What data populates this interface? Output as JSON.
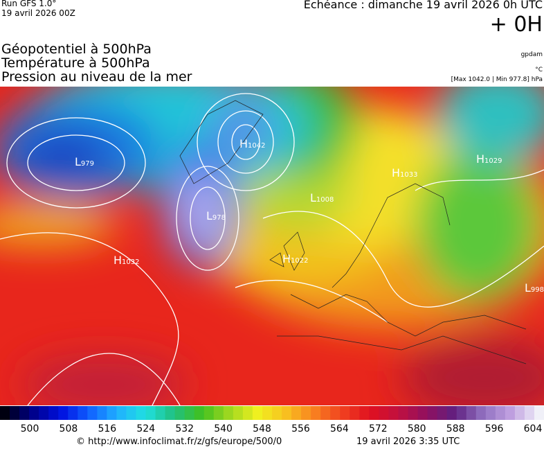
{
  "header": {
    "run": "Run GFS 1.0°",
    "run_date": "19 avril 2026 00Z",
    "forecast": "Echéance : dimanche 19 avril 2026 0h UTC",
    "lead": "+ 0H"
  },
  "fields": [
    "Géopotentiel à 500hPa",
    "Température à 500hPa",
    "Pression au niveau de la mer"
  ],
  "units": {
    "geopotential": "gpdam",
    "temperature": "°C",
    "pressure": "[Max 1042.0 | Min 977.8] hPa"
  },
  "centers": [
    {
      "letter": "H",
      "value": "1042"
    },
    {
      "letter": "L",
      "value": "979"
    },
    {
      "letter": "L",
      "value": "978"
    },
    {
      "letter": "H",
      "value": "1032"
    },
    {
      "letter": "L",
      "value": "1008"
    },
    {
      "letter": "H",
      "value": "1029"
    },
    {
      "letter": "H",
      "value": "1022"
    },
    {
      "letter": "H",
      "value": "1033"
    },
    {
      "letter": "L",
      "value": "998"
    }
  ],
  "colorbar": {
    "labels": [
      "500",
      "508",
      "516",
      "524",
      "532",
      "540",
      "548",
      "556",
      "564",
      "572",
      "580",
      "588",
      "596",
      "604"
    ]
  },
  "footer": {
    "source": "© http://www.infoclimat.fr/z/gfs/europe/500/0",
    "generated": "19 avril 2026  3:35 UTC"
  }
}
